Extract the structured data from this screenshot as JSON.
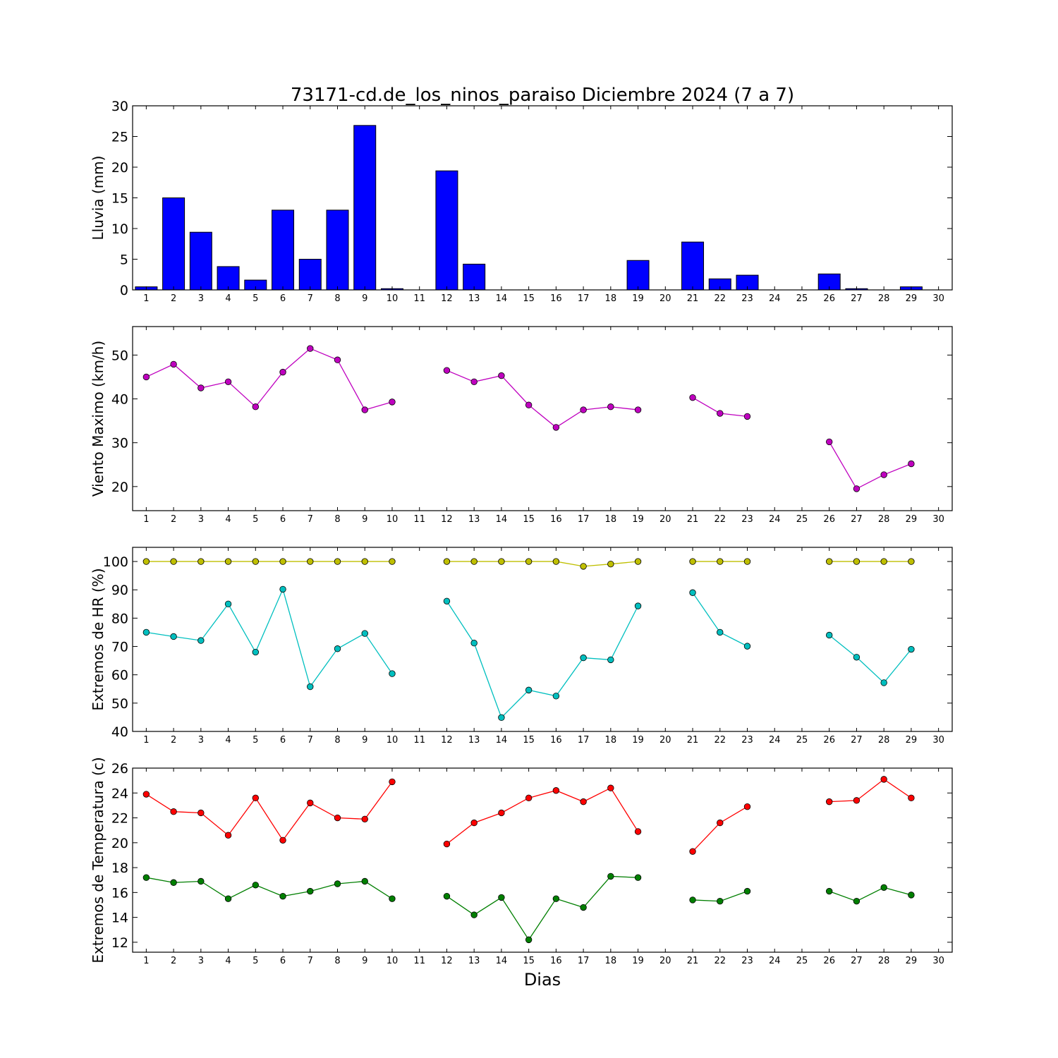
{
  "chart_data": {
    "title": "73171-cd.de_los_ninos_paraiso Diciembre 2024  (7 a 7)",
    "xlabel": "Dias",
    "x_ticks": [
      1,
      2,
      3,
      4,
      5,
      6,
      7,
      8,
      9,
      10,
      11,
      12,
      13,
      14,
      15,
      16,
      17,
      18,
      19,
      20,
      21,
      22,
      23,
      24,
      25,
      26,
      27,
      28,
      29,
      30
    ],
    "xlim": [
      0.5,
      30.5
    ],
    "panels": [
      {
        "type": "bar",
        "ylabel": "Lluvia (mm)",
        "ylim": [
          0,
          30
        ],
        "yticks": [
          0,
          5,
          10,
          15,
          20,
          25,
          30
        ],
        "series": [
          {
            "color": "#0000ff",
            "x": [
              1,
              2,
              3,
              4,
              5,
              6,
              7,
              8,
              9,
              10,
              11,
              12,
              13,
              14,
              15,
              16,
              17,
              18,
              19,
              20,
              21,
              22,
              23,
              24,
              25,
              26,
              27,
              28,
              29,
              30
            ],
            "values": [
              0.5,
              15.0,
              9.4,
              3.8,
              1.6,
              13.0,
              5.0,
              13.0,
              26.8,
              0.2,
              null,
              19.4,
              4.2,
              0,
              0,
              0,
              0,
              0,
              4.8,
              null,
              7.8,
              1.8,
              2.4,
              null,
              null,
              2.6,
              0.2,
              0,
              0.5,
              null
            ]
          }
        ]
      },
      {
        "type": "line",
        "ylabel": "Viento Maximo (km/h)",
        "ylim": [
          14.5,
          56.5
        ],
        "yticks": [
          20,
          30,
          40,
          50
        ],
        "series": [
          {
            "color": "#bf00bf",
            "x": [
              1,
              2,
              3,
              4,
              5,
              6,
              7,
              8,
              9,
              10,
              11,
              12,
              13,
              14,
              15,
              16,
              17,
              18,
              19,
              20,
              21,
              22,
              23,
              24,
              25,
              26,
              27,
              28,
              29,
              30
            ],
            "values": [
              45.0,
              47.9,
              42.5,
              43.9,
              38.2,
              46.1,
              51.5,
              48.9,
              37.5,
              39.3,
              null,
              46.5,
              43.9,
              45.3,
              38.6,
              33.5,
              37.5,
              38.2,
              37.5,
              null,
              40.3,
              36.7,
              36.0,
              null,
              null,
              30.2,
              19.5,
              22.7,
              25.2,
              null
            ]
          }
        ]
      },
      {
        "type": "line",
        "ylabel": "Extremos de HR (%)",
        "ylim": [
          40,
          105
        ],
        "yticks": [
          40,
          50,
          60,
          70,
          80,
          90,
          100
        ],
        "series": [
          {
            "color": "#bfbf00",
            "x": [
              1,
              2,
              3,
              4,
              5,
              6,
              7,
              8,
              9,
              10,
              11,
              12,
              13,
              14,
              15,
              16,
              17,
              18,
              19,
              20,
              21,
              22,
              23,
              24,
              25,
              26,
              27,
              28,
              29,
              30
            ],
            "values": [
              100,
              100,
              100,
              100,
              100,
              100,
              100,
              100,
              100,
              100,
              null,
              100,
              100,
              100,
              100,
              100,
              98.3,
              99.1,
              100,
              null,
              100,
              100,
              100,
              null,
              null,
              100,
              100,
              100,
              100,
              null
            ]
          },
          {
            "color": "#00bfbf",
            "x": [
              1,
              2,
              3,
              4,
              5,
              6,
              7,
              8,
              9,
              10,
              11,
              12,
              13,
              14,
              15,
              16,
              17,
              18,
              19,
              20,
              21,
              22,
              23,
              24,
              25,
              26,
              27,
              28,
              29,
              30
            ],
            "values": [
              75.0,
              73.5,
              72.1,
              85.0,
              68.0,
              90.2,
              55.8,
              69.2,
              74.6,
              60.4,
              null,
              86.0,
              71.2,
              44.9,
              54.6,
              52.5,
              66.0,
              65.3,
              84.3,
              null,
              89.0,
              75.0,
              70.1,
              null,
              null,
              74.0,
              66.2,
              57.2,
              69.0,
              null
            ]
          }
        ]
      },
      {
        "type": "line",
        "ylabel": "Extremos de Temperatura (c)",
        "ylim": [
          11.2,
          26
        ],
        "yticks": [
          12,
          14,
          16,
          18,
          20,
          22,
          24,
          26
        ],
        "series": [
          {
            "color": "#ff0000",
            "x": [
              1,
              2,
              3,
              4,
              5,
              6,
              7,
              8,
              9,
              10,
              11,
              12,
              13,
              14,
              15,
              16,
              17,
              18,
              19,
              20,
              21,
              22,
              23,
              24,
              25,
              26,
              27,
              28,
              29,
              30
            ],
            "values": [
              23.9,
              22.5,
              22.4,
              20.6,
              23.6,
              20.2,
              23.2,
              22.0,
              21.9,
              24.9,
              null,
              19.9,
              21.6,
              22.4,
              23.6,
              24.2,
              23.3,
              24.4,
              20.9,
              null,
              19.3,
              21.6,
              22.9,
              null,
              null,
              23.3,
              23.4,
              25.1,
              23.6,
              null
            ]
          },
          {
            "color": "#007f00",
            "x": [
              1,
              2,
              3,
              4,
              5,
              6,
              7,
              8,
              9,
              10,
              11,
              12,
              13,
              14,
              15,
              16,
              17,
              18,
              19,
              20,
              21,
              22,
              23,
              24,
              25,
              26,
              27,
              28,
              29,
              30
            ],
            "values": [
              17.2,
              16.8,
              16.9,
              15.5,
              16.6,
              15.7,
              16.1,
              16.7,
              16.9,
              15.5,
              null,
              15.7,
              14.2,
              15.6,
              12.2,
              15.5,
              14.8,
              17.3,
              17.2,
              null,
              15.4,
              15.3,
              16.1,
              null,
              null,
              16.1,
              15.3,
              16.4,
              15.8,
              null
            ]
          }
        ]
      }
    ]
  }
}
